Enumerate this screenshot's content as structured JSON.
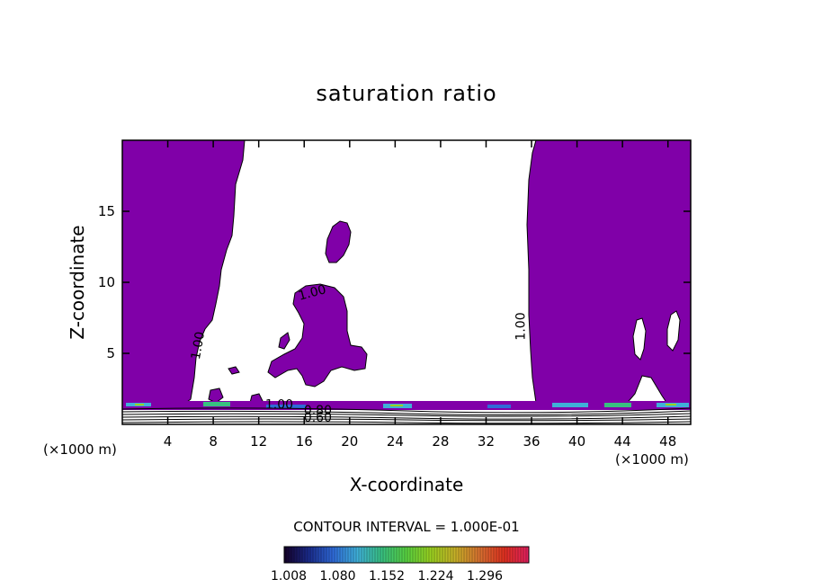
{
  "chart_data": {
    "type": "heatmap",
    "title": "saturation ratio",
    "xlabel": "X-coordinate",
    "ylabel": "Z-coordinate",
    "x_unit_left": "(×1000 m)",
    "x_unit_right": "(×1000 m)",
    "xlim": [
      0,
      50
    ],
    "ylim": [
      0,
      20
    ],
    "x_ticks": [
      4,
      8,
      12,
      16,
      20,
      24,
      28,
      32,
      36,
      40,
      44,
      48
    ],
    "y_ticks": [
      5,
      10,
      15
    ],
    "contour_interval": "CONTOUR INTERVAL = 1.000E-01",
    "contour_labels": [
      {
        "text": "1.00",
        "x": 7.0,
        "z": 5.5,
        "angle": -80
      },
      {
        "text": "1.00",
        "x": 16.8,
        "z": 9.0,
        "angle": -15
      },
      {
        "text": "1.00",
        "x": 35.4,
        "z": 6.9,
        "angle": -90
      },
      {
        "text": "1.00",
        "x": 13.8,
        "z": 1.1,
        "angle": 0
      },
      {
        "text": "0.80",
        "x": 17.2,
        "z": 0.7,
        "angle": 0
      },
      {
        "text": "0.60",
        "x": 17.2,
        "z": 0.2,
        "angle": 0
      }
    ],
    "colorbar": {
      "ticks": [
        "1.008",
        "1.080",
        "1.152",
        "1.224",
        "1.296"
      ],
      "colors": [
        "#140028",
        "#1a2a8a",
        "#2f6ad8",
        "#3fb0d8",
        "#38c080",
        "#58d040",
        "#9ad020",
        "#c8b028",
        "#d87030",
        "#e03020",
        "#e02060"
      ]
    },
    "fill_color": "#8000a8",
    "subsaturated_fill": "#ffffff"
  }
}
